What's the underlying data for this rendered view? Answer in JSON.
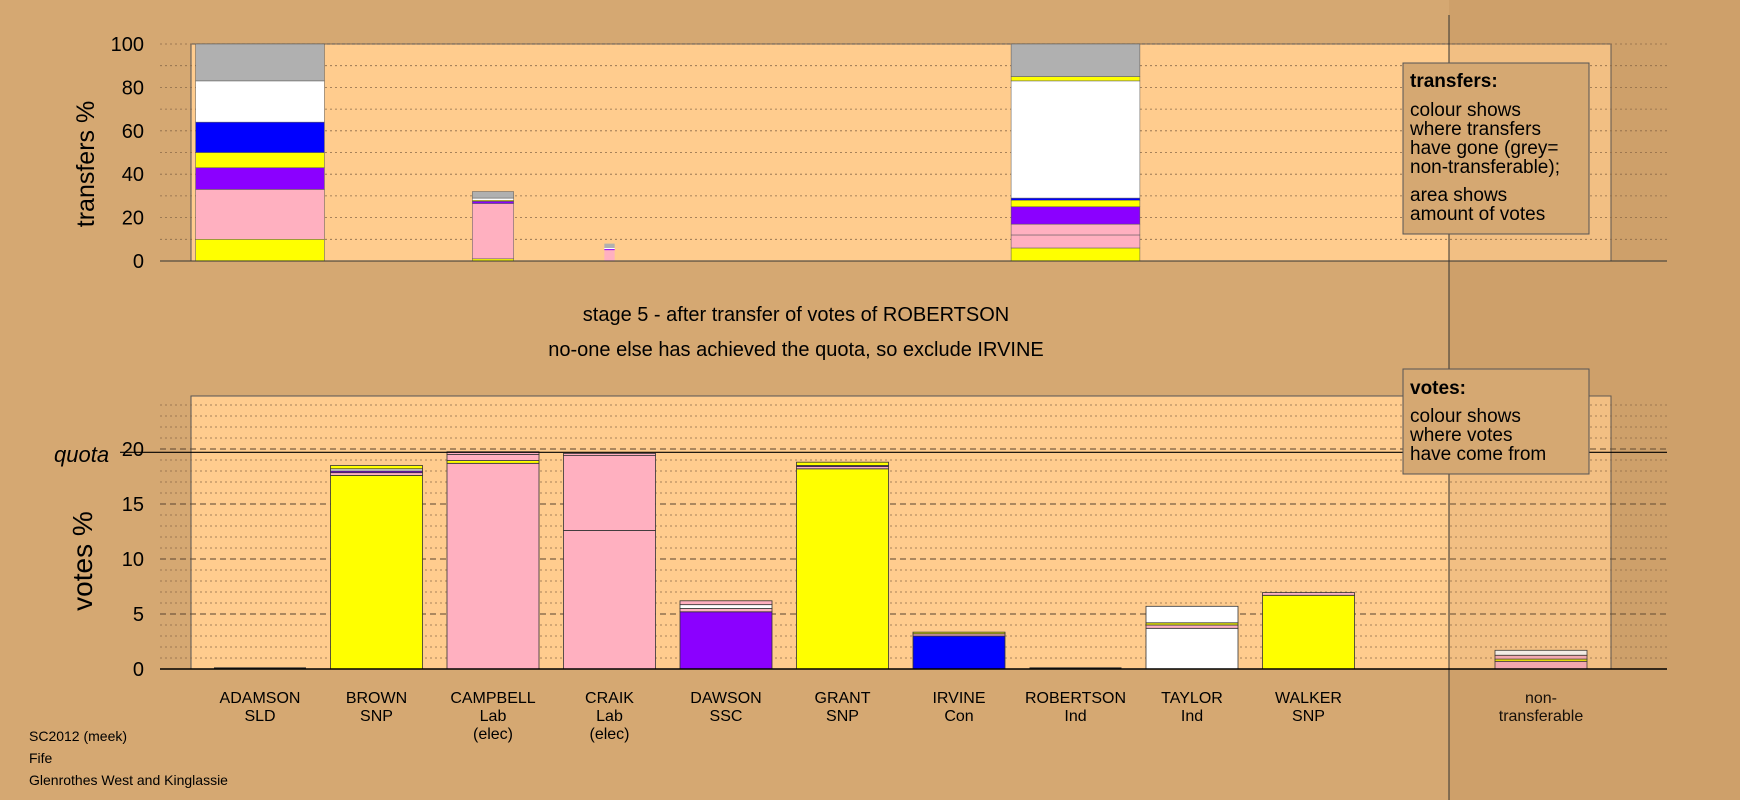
{
  "chart_data": [
    {
      "type": "bar",
      "ylabel": "transfers %",
      "ylim": [
        0,
        100
      ],
      "yticks": [
        0,
        20,
        40,
        60,
        80,
        100
      ],
      "legend": {
        "title": "transfers:",
        "lines1": [
          "colour shows",
          "where transfers",
          "have gone (grey=",
          "non-transferable);"
        ],
        "lines2": [
          "area shows",
          "amount of votes"
        ]
      },
      "bars": [
        {
          "candidate": "ADAMSON",
          "segments": [
            {
              "to": "BROWN",
              "value": 10,
              "color": "#ffff00"
            },
            {
              "to": "CAMPBELL",
              "value": 23,
              "color": "#ffb0c0"
            },
            {
              "to": "DAWSON",
              "value": 10,
              "color": "#8b00ff"
            },
            {
              "to": "GRANT",
              "value": 7,
              "color": "#ffff00"
            },
            {
              "to": "IRVINE",
              "value": 14,
              "color": "#0000ff"
            },
            {
              "to": "TAYLOR",
              "value": 19,
              "color": "#ffffff"
            },
            {
              "to": "non-transferable",
              "value": 17,
              "color": "#b0b0b0"
            }
          ]
        },
        {
          "candidate": "CAMPBELL",
          "segments": [
            {
              "to": "BROWN",
              "value": 1,
              "color": "#ffff00"
            },
            {
              "to": "CRAIK",
              "value": 25.5,
              "color": "#ffb0c0"
            },
            {
              "to": "DAWSON",
              "value": 1,
              "color": "#8b00ff"
            },
            {
              "to": "GRANT",
              "value": 0.5,
              "color": "#ffff00"
            },
            {
              "to": "TAYLOR",
              "value": 1,
              "color": "#ffffff"
            },
            {
              "to": "non-transferable",
              "value": 3,
              "color": "#b0b0b0"
            }
          ]
        },
        {
          "candidate": "CRAIK",
          "segments": [
            {
              "to": "CAMPBELL",
              "value": 5,
              "color": "#ffb0c0"
            },
            {
              "to": "DAWSON",
              "value": 0.5,
              "color": "#8b00ff"
            },
            {
              "to": "TAYLOR",
              "value": 0.5,
              "color": "#ffffff"
            },
            {
              "to": "non-transferable",
              "value": 2,
              "color": "#b0b0b0"
            }
          ]
        },
        {
          "candidate": "ROBERTSON",
          "segments": [
            {
              "to": "BROWN",
              "value": 6,
              "color": "#ffff00"
            },
            {
              "to": "CAMPBELL",
              "value": 6,
              "color": "#ffb0c0"
            },
            {
              "to": "CRAIK",
              "value": 5,
              "color": "#ffb0c0"
            },
            {
              "to": "DAWSON",
              "value": 8,
              "color": "#8b00ff"
            },
            {
              "to": "GRANT",
              "value": 3,
              "color": "#ffff00"
            },
            {
              "to": "IRVINE",
              "value": 1,
              "color": "#0000ff"
            },
            {
              "to": "TAYLOR",
              "value": 54,
              "color": "#ffffff"
            },
            {
              "to": "WALKER",
              "value": 2,
              "color": "#ffff00"
            },
            {
              "to": "non-transferable",
              "value": 15,
              "color": "#b0b0b0"
            }
          ]
        }
      ]
    },
    {
      "type": "bar",
      "ylabel": "votes %",
      "ylim": [
        0,
        20
      ],
      "yticks": [
        0,
        5,
        10,
        15,
        20
      ],
      "quota": 19.7,
      "quota_label": "quota",
      "legend": {
        "title": "votes:",
        "lines": [
          "colour shows",
          "where votes",
          "have come from"
        ]
      },
      "categories": [
        {
          "name": "ADAMSON",
          "party": "SLD",
          "note": ""
        },
        {
          "name": "BROWN",
          "party": "SNP",
          "note": ""
        },
        {
          "name": "CAMPBELL",
          "party": "Lab",
          "note": "(elec)"
        },
        {
          "name": "CRAIK",
          "party": "Lab",
          "note": "(elec)"
        },
        {
          "name": "DAWSON",
          "party": "SSC",
          "note": ""
        },
        {
          "name": "GRANT",
          "party": "SNP",
          "note": ""
        },
        {
          "name": "IRVINE",
          "party": "Con",
          "note": ""
        },
        {
          "name": "ROBERTSON",
          "party": "Ind",
          "note": ""
        },
        {
          "name": "TAYLOR",
          "party": "Ind",
          "note": ""
        },
        {
          "name": "WALKER",
          "party": "SNP",
          "note": ""
        }
      ],
      "nontransferable_label": [
        "non-",
        "transferable"
      ],
      "bars": [
        {
          "segments": []
        },
        {
          "segments": [
            {
              "value": 17.6,
              "color": "#ffff00"
            },
            {
              "value": 0.25,
              "color": "#ffb0c0"
            },
            {
              "value": 0.15,
              "color": "#8b00ff"
            },
            {
              "value": 0.2,
              "color": "#ffffff"
            },
            {
              "value": 0.3,
              "color": "#ffff00"
            }
          ]
        },
        {
          "segments": [
            {
              "value": 18.7,
              "color": "#ffb0c0"
            },
            {
              "value": 0.25,
              "color": "#ffff00"
            },
            {
              "value": 0.55,
              "color": "#ffb0c0"
            },
            {
              "value": 0.25,
              "color": "#ffb0c0"
            }
          ]
        },
        {
          "segments": [
            {
              "value": 12.6,
              "color": "#ffb0c0"
            },
            {
              "value": 6.8,
              "color": "#ffb0c0"
            },
            {
              "value": 0.2,
              "color": "#ffb0c0"
            }
          ]
        },
        {
          "segments": [
            {
              "value": 5.2,
              "color": "#8b00ff"
            },
            {
              "value": 0.3,
              "color": "#ffb0c0"
            },
            {
              "value": 0.35,
              "color": "#ffffff"
            },
            {
              "value": 0.35,
              "color": "#ffb0c0"
            }
          ]
        },
        {
          "segments": [
            {
              "value": 18.2,
              "color": "#ffff00"
            },
            {
              "value": 0.2,
              "color": "#ffb0c0"
            },
            {
              "value": 0.1,
              "color": "#8b00ff"
            },
            {
              "value": 0.3,
              "color": "#ffff00"
            }
          ]
        },
        {
          "segments": [
            {
              "value": 3.0,
              "color": "#0000ff"
            },
            {
              "value": 0.2,
              "color": "#ffb0c0"
            },
            {
              "value": 0.15,
              "color": "#ffff00"
            }
          ]
        },
        {
          "segments": []
        },
        {
          "segments": [
            {
              "value": 3.7,
              "color": "#ffffff"
            },
            {
              "value": 0.3,
              "color": "#ffb0c0"
            },
            {
              "value": 0.2,
              "color": "#ffff00"
            },
            {
              "value": 1.5,
              "color": "#ffffff"
            }
          ]
        },
        {
          "segments": [
            {
              "value": 6.7,
              "color": "#ffff00"
            },
            {
              "value": 0.25,
              "color": "#ffb0c0"
            }
          ]
        }
      ],
      "nontransferable": {
        "segments": [
          {
            "value": 0.7,
            "color": "#ffb0c0"
          },
          {
            "value": 0.2,
            "color": "#ffff00"
          },
          {
            "value": 0.35,
            "color": "#ffb0c0"
          },
          {
            "value": 0.45,
            "color": "#ffffff"
          }
        ]
      }
    }
  ],
  "stage_text": "stage 5 - after transfer of votes of ROBERTSON",
  "status_text": "no-one else has achieved the quota, so exclude IRVINE",
  "footer": [
    "SC2012 (meek)",
    "Fife",
    "Glenrothes West and Kinglassie"
  ],
  "colors": {
    "background": "#d5a872",
    "plot": "#ffcc8e",
    "legend_box": "#d5a872",
    "nontransferable_panel": "#c79d68"
  }
}
